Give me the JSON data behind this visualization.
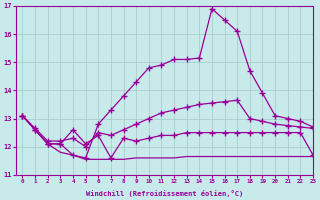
{
  "xlabel": "Windchill (Refroidissement éolien,°C)",
  "xlim": [
    -0.5,
    23
  ],
  "ylim": [
    11,
    17
  ],
  "yticks": [
    11,
    12,
    13,
    14,
    15,
    16,
    17
  ],
  "xticks": [
    0,
    1,
    2,
    3,
    4,
    5,
    6,
    7,
    8,
    9,
    10,
    11,
    12,
    13,
    14,
    15,
    16,
    17,
    18,
    19,
    20,
    21,
    22,
    23
  ],
  "bg_color": "#c8eaea",
  "line_color": "#990099",
  "grid_color": "#aacccc",
  "lines": [
    {
      "x": [
        0,
        1,
        2,
        3,
        4,
        5,
        6,
        7,
        8,
        9,
        10,
        11,
        12,
        13,
        14,
        15,
        16,
        17,
        18,
        19,
        20,
        21,
        22,
        23
      ],
      "y": [
        13.1,
        12.6,
        12.1,
        12.1,
        11.7,
        11.6,
        12.8,
        13.3,
        13.8,
        14.3,
        14.8,
        14.9,
        15.1,
        15.1,
        15.15,
        16.9,
        16.5,
        16.1,
        14.7,
        13.9,
        13.1,
        13.0,
        12.9,
        12.7
      ],
      "marker": "+",
      "markersize": 4.0,
      "linewidth": 0.9
    },
    {
      "x": [
        0,
        1,
        2,
        3,
        4,
        5,
        6,
        7,
        8,
        9,
        10,
        11,
        12,
        13,
        14,
        15,
        16,
        17,
        18,
        19,
        20,
        21,
        22,
        23
      ],
      "y": [
        13.1,
        12.65,
        12.2,
        12.2,
        12.3,
        12.0,
        12.5,
        12.4,
        12.6,
        12.8,
        13.0,
        13.2,
        13.3,
        13.4,
        13.5,
        13.55,
        13.6,
        13.65,
        13.0,
        12.9,
        12.8,
        12.75,
        12.7,
        12.65
      ],
      "marker": "+",
      "markersize": 4.0,
      "linewidth": 0.9
    },
    {
      "x": [
        0,
        1,
        2,
        3,
        4,
        5,
        6,
        7,
        8,
        9,
        10,
        11,
        12,
        13,
        14,
        15,
        16,
        17,
        18,
        19,
        20,
        21,
        22,
        23
      ],
      "y": [
        13.1,
        12.6,
        12.1,
        12.1,
        12.6,
        12.1,
        12.4,
        11.6,
        12.3,
        12.2,
        12.3,
        12.4,
        12.4,
        12.5,
        12.5,
        12.5,
        12.5,
        12.5,
        12.5,
        12.5,
        12.5,
        12.5,
        12.5,
        11.7
      ],
      "marker": "+",
      "markersize": 4.0,
      "linewidth": 0.9
    },
    {
      "x": [
        0,
        1,
        2,
        3,
        4,
        5,
        6,
        7,
        8,
        9,
        10,
        11,
        12,
        13,
        14,
        15,
        16,
        17,
        18,
        19,
        20,
        21,
        22,
        23
      ],
      "y": [
        13.1,
        12.6,
        12.1,
        11.8,
        11.7,
        11.55,
        11.55,
        11.55,
        11.55,
        11.6,
        11.6,
        11.6,
        11.6,
        11.65,
        11.65,
        11.65,
        11.65,
        11.65,
        11.65,
        11.65,
        11.65,
        11.65,
        11.65,
        11.65
      ],
      "marker": null,
      "markersize": 0,
      "linewidth": 0.9
    }
  ]
}
